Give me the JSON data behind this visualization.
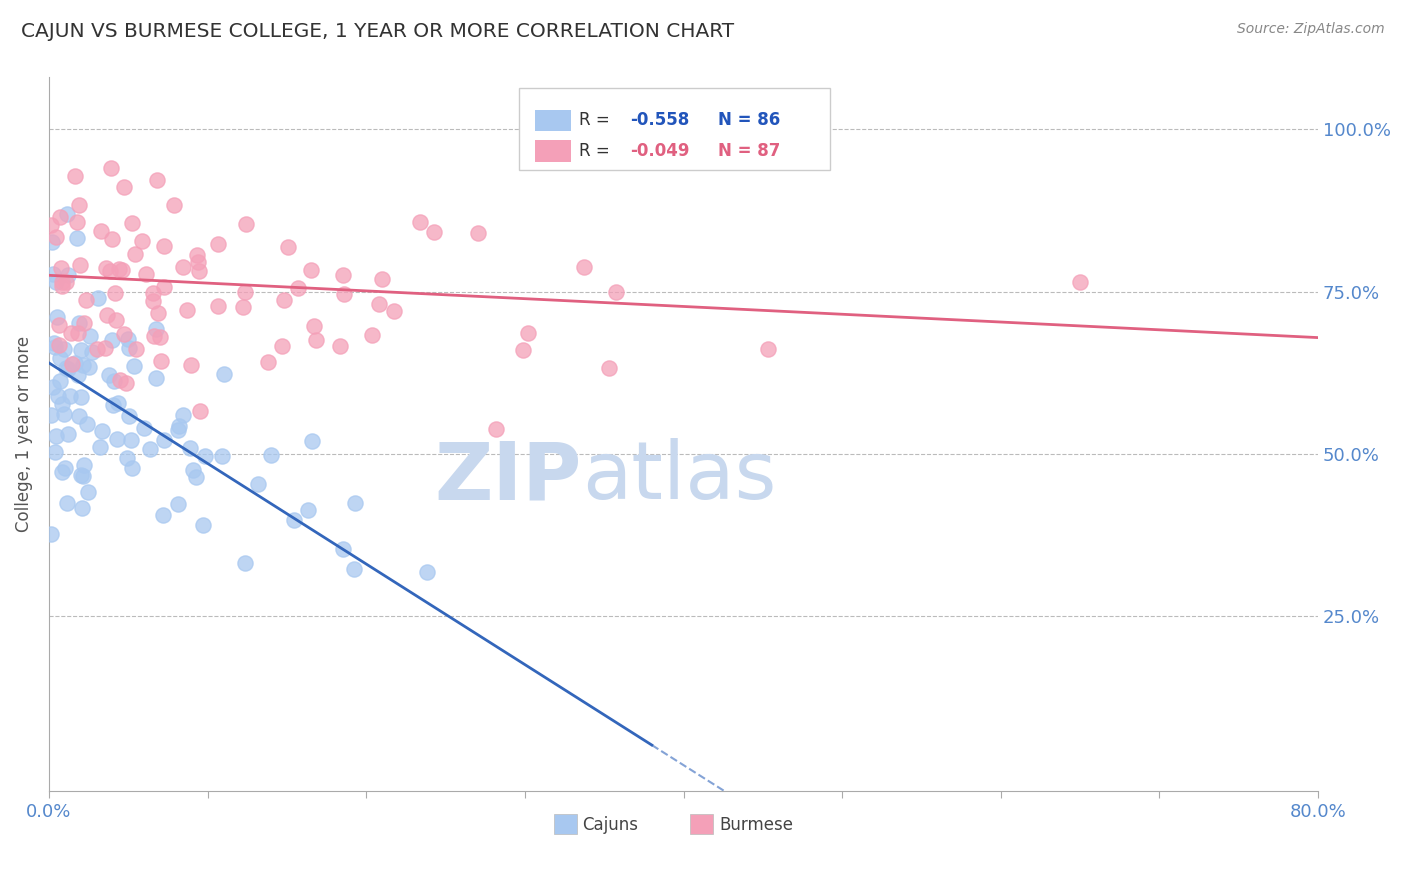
{
  "title": "CAJUN VS BURMESE COLLEGE, 1 YEAR OR MORE CORRELATION CHART",
  "source_text": "Source: ZipAtlas.com",
  "ylabel": "College, 1 year or more",
  "xlim": [
    0.0,
    0.8
  ],
  "ylim": [
    -0.02,
    1.08
  ],
  "yticks": [
    0.25,
    0.5,
    0.75,
    1.0
  ],
  "ytick_labels": [
    "25.0%",
    "50.0%",
    "75.0%",
    "100.0%"
  ],
  "xticks": [
    0.0,
    0.1,
    0.2,
    0.3,
    0.4,
    0.5,
    0.6,
    0.7,
    0.8
  ],
  "cajun_R": -0.558,
  "cajun_N": 86,
  "burmese_R": -0.049,
  "burmese_N": 87,
  "cajun_color": "#A8C8F0",
  "cajun_line_color": "#3366BB",
  "burmese_color": "#F4A0B8",
  "burmese_line_color": "#E06080",
  "watermark": "ZIPatlas",
  "watermark_color": "#C8D8EE",
  "background_color": "#FFFFFF",
  "grid_color": "#BBBBBB",
  "title_color": "#333333",
  "axis_label_color": "#5588CC",
  "legend_R_cajun_color": "#2255BB",
  "legend_R_burmese_color": "#E06080",
  "cajun_seed": 42,
  "burmese_seed": 77,
  "cajun_intercept": 0.64,
  "cajun_slope": -1.55,
  "cajun_noise": 0.1,
  "burmese_intercept": 0.775,
  "burmese_slope": -0.12,
  "burmese_noise": 0.09
}
